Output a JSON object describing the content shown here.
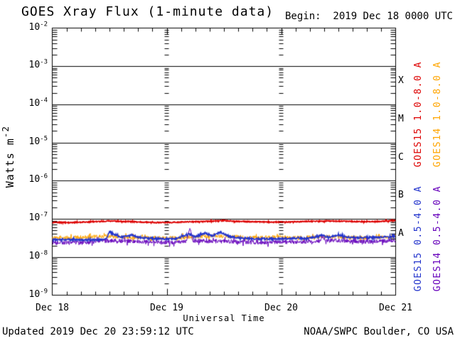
{
  "header": {
    "title": "GOES Xray Flux (1-minute data)",
    "begin": "Begin:  2019 Dec 18 0000 UTC"
  },
  "footer": {
    "updated": "Updated 2019 Dec 20 23:59:12 UTC",
    "source": "NOAA/SWPC Boulder, CO USA"
  },
  "chart_data": {
    "type": "line",
    "title": "GOES Xray Flux (1-minute data)",
    "begin_label": "Begin:  2019 Dec 18 0000 UTC",
    "xlabel": "Universal Time",
    "ylabel": "Watts m",
    "ylabel_exponent": "-2",
    "x_axis": {
      "tick_labels": [
        "Dec 18",
        "Dec 19",
        "Dec 20",
        "Dec 21"
      ],
      "range_hours": [
        0,
        72
      ],
      "minor_tick_hours": 3
    },
    "y_axis": {
      "scale": "log",
      "tick_exponents": [
        -2,
        -3,
        -4,
        -5,
        -6,
        -7,
        -8,
        -9
      ],
      "grid_decades": [
        -3,
        -4,
        -5,
        -6,
        -7,
        -8
      ]
    },
    "flare_classes": [
      {
        "label": "X",
        "midpoint_exp": -3.5
      },
      {
        "label": "M",
        "midpoint_exp": -4.5
      },
      {
        "label": "C",
        "midpoint_exp": -5.5
      },
      {
        "label": "B",
        "midpoint_exp": -6.5
      },
      {
        "label": "A",
        "midpoint_exp": -7.5
      }
    ],
    "colors": {
      "axis": "#000000",
      "goes15_long": "#dd0000",
      "goes14_long": "#ffa500",
      "goes15_short": "#2233cc",
      "goes14_short": "#6600bb"
    },
    "series": [
      {
        "name": "GOES14 1.0-8.0 A",
        "color": "#ffa500",
        "line_width": 1.0,
        "noise_dex": 0.05,
        "points": [
          [
            0,
            3.1e-08
          ],
          [
            6,
            3.3e-08
          ],
          [
            12,
            3.5e-08
          ],
          [
            16,
            3.3e-08
          ],
          [
            20,
            3.2e-08
          ],
          [
            24,
            3.2e-08
          ],
          [
            29,
            3.4e-08
          ],
          [
            33,
            3.5e-08
          ],
          [
            36,
            3.5e-08
          ],
          [
            40,
            3.3e-08
          ],
          [
            44,
            3.2e-08
          ],
          [
            48,
            3.3e-08
          ],
          [
            52,
            3.2e-08
          ],
          [
            56,
            3.4e-08
          ],
          [
            60,
            3.4e-08
          ],
          [
            64,
            3.2e-08
          ],
          [
            68,
            3.2e-08
          ],
          [
            72,
            3.5e-08
          ]
        ]
      },
      {
        "name": "GOES14 0.5-4.0 A",
        "color": "#6600bb",
        "line_width": 1.0,
        "noise_dex": 0.055,
        "points": [
          [
            0,
            2.4e-08
          ],
          [
            4,
            2.4e-08
          ],
          [
            8,
            2.5e-08
          ],
          [
            12,
            2.7e-08
          ],
          [
            16,
            2.6e-08
          ],
          [
            20,
            2.5e-08
          ],
          [
            24,
            2.4e-08
          ],
          [
            28,
            2.5e-08
          ],
          [
            28.9,
            5.2e-08
          ],
          [
            29.5,
            2.7e-08
          ],
          [
            32,
            2.6e-08
          ],
          [
            36,
            2.6e-08
          ],
          [
            40,
            2.5e-08
          ],
          [
            44,
            2.4e-08
          ],
          [
            48,
            2.5e-08
          ],
          [
            52,
            2.5e-08
          ],
          [
            56,
            2.6e-08
          ],
          [
            56.6,
            3.5e-08
          ],
          [
            57.4,
            2.7e-08
          ],
          [
            60,
            2.7e-08
          ],
          [
            63,
            2.6e-08
          ],
          [
            66,
            2.5e-08
          ],
          [
            69,
            2.6e-08
          ],
          [
            72,
            2.7e-08
          ]
        ]
      },
      {
        "name": "GOES15 0.5-4.0 A",
        "color": "#2233cc",
        "line_width": 1.6,
        "noise_dex": 0.022,
        "points": [
          [
            0,
            2.8e-08
          ],
          [
            3,
            2.9e-08
          ],
          [
            6,
            2.8e-08
          ],
          [
            9,
            2.8e-08
          ],
          [
            11.3,
            2.9e-08
          ],
          [
            12,
            4.7e-08
          ],
          [
            13,
            3.9e-08
          ],
          [
            14.5,
            3.3e-08
          ],
          [
            16.5,
            3.8e-08
          ],
          [
            18,
            3.3e-08
          ],
          [
            20,
            3.1e-08
          ],
          [
            23,
            3e-08
          ],
          [
            26,
            3e-08
          ],
          [
            28.5,
            4e-08
          ],
          [
            30,
            3.4e-08
          ],
          [
            32,
            4.2e-08
          ],
          [
            33.5,
            3.6e-08
          ],
          [
            35.3,
            4.5e-08
          ],
          [
            37,
            3.5e-08
          ],
          [
            39,
            3.2e-08
          ],
          [
            42,
            3e-08
          ],
          [
            45,
            3e-08
          ],
          [
            48,
            3e-08
          ],
          [
            51,
            3.1e-08
          ],
          [
            54,
            3.1e-08
          ],
          [
            56.5,
            3.7e-08
          ],
          [
            58,
            3.3e-08
          ],
          [
            60,
            3.8e-08
          ],
          [
            61.5,
            3.4e-08
          ],
          [
            63,
            3.2e-08
          ],
          [
            65,
            3.2e-08
          ],
          [
            67,
            3.3e-08
          ],
          [
            69,
            3.3e-08
          ],
          [
            71,
            3.4e-08
          ],
          [
            72,
            3.5e-08
          ]
        ]
      },
      {
        "name": "GOES15 1.0-8.0 A",
        "color": "#dd0000",
        "line_width": 1.7,
        "noise_dex": 0.013,
        "points": [
          [
            0,
            8.1e-08
          ],
          [
            4,
            8e-08
          ],
          [
            8,
            8.3e-08
          ],
          [
            12,
            8.8e-08
          ],
          [
            16,
            8.5e-08
          ],
          [
            20,
            8.1e-08
          ],
          [
            24,
            8e-08
          ],
          [
            28,
            8.3e-08
          ],
          [
            32,
            8.6e-08
          ],
          [
            36,
            9e-08
          ],
          [
            38,
            8.7e-08
          ],
          [
            42,
            8.4e-08
          ],
          [
            46,
            8.2e-08
          ],
          [
            50,
            8.3e-08
          ],
          [
            54,
            8.6e-08
          ],
          [
            58,
            8.8e-08
          ],
          [
            62,
            8.6e-08
          ],
          [
            66,
            8.4e-08
          ],
          [
            70,
            8.7e-08
          ],
          [
            72,
            9.2e-08
          ]
        ]
      }
    ],
    "legend": [
      {
        "label": "GOES15 1.0-8.0 A",
        "color": "#dd0000",
        "column": 0,
        "group": "top"
      },
      {
        "label": "GOES14 1.0-8.0 A",
        "color": "#ffa500",
        "column": 1,
        "group": "top"
      },
      {
        "label": "GOES15 0.5-4.0 A",
        "color": "#2233cc",
        "column": 0,
        "group": "bottom"
      },
      {
        "label": "GOES14 0.5-4.0 A",
        "color": "#6600bb",
        "column": 1,
        "group": "bottom"
      }
    ],
    "legend_position": "right"
  }
}
